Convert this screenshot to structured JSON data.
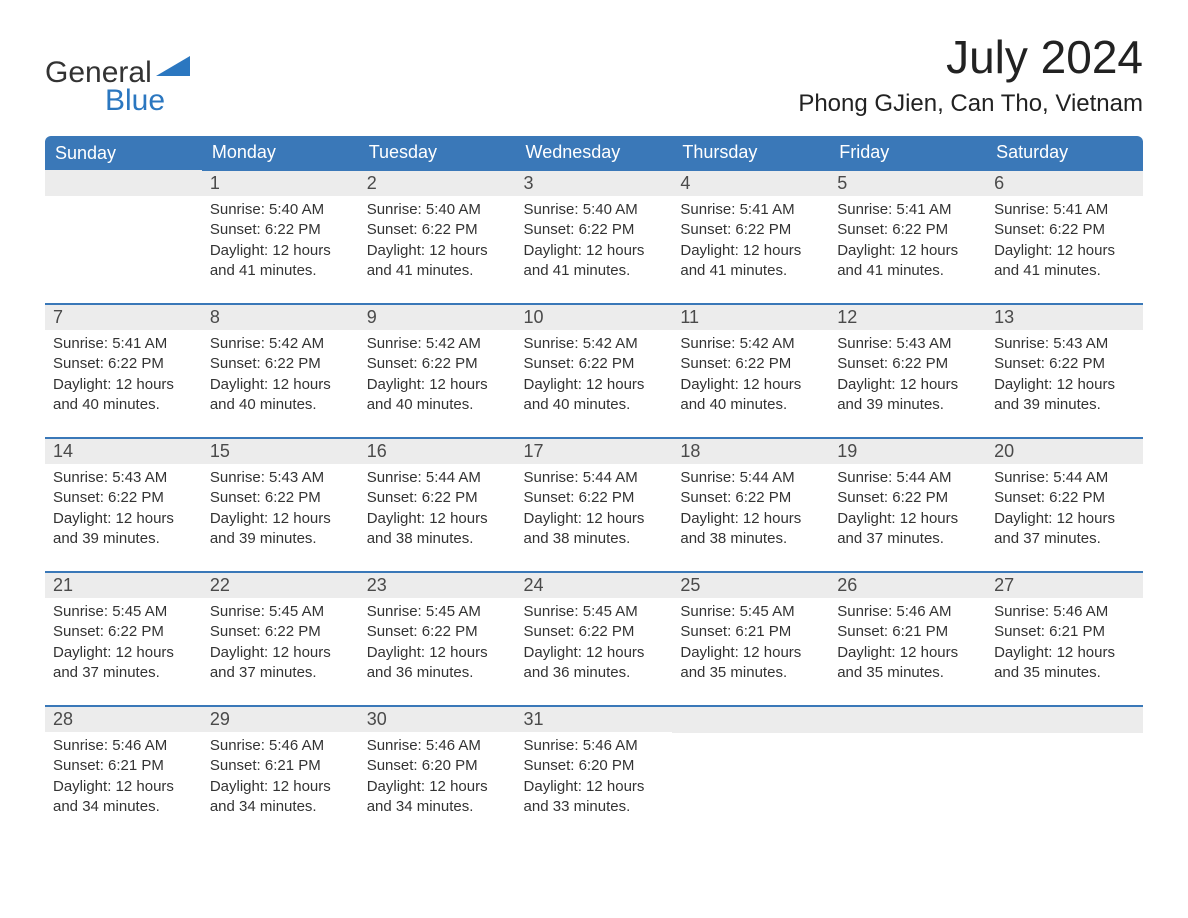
{
  "logo": {
    "text_top": "General",
    "text_bottom": "Blue",
    "tri_color": "#2b77c0"
  },
  "title": "July 2024",
  "location": "Phong GJien, Can Tho, Vietnam",
  "colors": {
    "header_bg": "#3a78b8",
    "header_text": "#ffffff",
    "daynum_bg": "#ececec",
    "row_border": "#3a78b8",
    "body_text": "#333333",
    "logo_blue": "#2b77c0"
  },
  "layout": {
    "columns": 7,
    "rows": 5,
    "start_weekday": "Sunday",
    "first_day_column_index": 1,
    "days_in_month": 31
  },
  "weekday_headers": [
    "Sunday",
    "Monday",
    "Tuesday",
    "Wednesday",
    "Thursday",
    "Friday",
    "Saturday"
  ],
  "labels": {
    "sunrise": "Sunrise: ",
    "sunset": "Sunset: ",
    "daylight": "Daylight: "
  },
  "days": [
    {
      "n": 1,
      "sunrise": "5:40 AM",
      "sunset": "6:22 PM",
      "daylight": "12 hours and 41 minutes."
    },
    {
      "n": 2,
      "sunrise": "5:40 AM",
      "sunset": "6:22 PM",
      "daylight": "12 hours and 41 minutes."
    },
    {
      "n": 3,
      "sunrise": "5:40 AM",
      "sunset": "6:22 PM",
      "daylight": "12 hours and 41 minutes."
    },
    {
      "n": 4,
      "sunrise": "5:41 AM",
      "sunset": "6:22 PM",
      "daylight": "12 hours and 41 minutes."
    },
    {
      "n": 5,
      "sunrise": "5:41 AM",
      "sunset": "6:22 PM",
      "daylight": "12 hours and 41 minutes."
    },
    {
      "n": 6,
      "sunrise": "5:41 AM",
      "sunset": "6:22 PM",
      "daylight": "12 hours and 41 minutes."
    },
    {
      "n": 7,
      "sunrise": "5:41 AM",
      "sunset": "6:22 PM",
      "daylight": "12 hours and 40 minutes."
    },
    {
      "n": 8,
      "sunrise": "5:42 AM",
      "sunset": "6:22 PM",
      "daylight": "12 hours and 40 minutes."
    },
    {
      "n": 9,
      "sunrise": "5:42 AM",
      "sunset": "6:22 PM",
      "daylight": "12 hours and 40 minutes."
    },
    {
      "n": 10,
      "sunrise": "5:42 AM",
      "sunset": "6:22 PM",
      "daylight": "12 hours and 40 minutes."
    },
    {
      "n": 11,
      "sunrise": "5:42 AM",
      "sunset": "6:22 PM",
      "daylight": "12 hours and 40 minutes."
    },
    {
      "n": 12,
      "sunrise": "5:43 AM",
      "sunset": "6:22 PM",
      "daylight": "12 hours and 39 minutes."
    },
    {
      "n": 13,
      "sunrise": "5:43 AM",
      "sunset": "6:22 PM",
      "daylight": "12 hours and 39 minutes."
    },
    {
      "n": 14,
      "sunrise": "5:43 AM",
      "sunset": "6:22 PM",
      "daylight": "12 hours and 39 minutes."
    },
    {
      "n": 15,
      "sunrise": "5:43 AM",
      "sunset": "6:22 PM",
      "daylight": "12 hours and 39 minutes."
    },
    {
      "n": 16,
      "sunrise": "5:44 AM",
      "sunset": "6:22 PM",
      "daylight": "12 hours and 38 minutes."
    },
    {
      "n": 17,
      "sunrise": "5:44 AM",
      "sunset": "6:22 PM",
      "daylight": "12 hours and 38 minutes."
    },
    {
      "n": 18,
      "sunrise": "5:44 AM",
      "sunset": "6:22 PM",
      "daylight": "12 hours and 38 minutes."
    },
    {
      "n": 19,
      "sunrise": "5:44 AM",
      "sunset": "6:22 PM",
      "daylight": "12 hours and 37 minutes."
    },
    {
      "n": 20,
      "sunrise": "5:44 AM",
      "sunset": "6:22 PM",
      "daylight": "12 hours and 37 minutes."
    },
    {
      "n": 21,
      "sunrise": "5:45 AM",
      "sunset": "6:22 PM",
      "daylight": "12 hours and 37 minutes."
    },
    {
      "n": 22,
      "sunrise": "5:45 AM",
      "sunset": "6:22 PM",
      "daylight": "12 hours and 37 minutes."
    },
    {
      "n": 23,
      "sunrise": "5:45 AM",
      "sunset": "6:22 PM",
      "daylight": "12 hours and 36 minutes."
    },
    {
      "n": 24,
      "sunrise": "5:45 AM",
      "sunset": "6:22 PM",
      "daylight": "12 hours and 36 minutes."
    },
    {
      "n": 25,
      "sunrise": "5:45 AM",
      "sunset": "6:21 PM",
      "daylight": "12 hours and 35 minutes."
    },
    {
      "n": 26,
      "sunrise": "5:46 AM",
      "sunset": "6:21 PM",
      "daylight": "12 hours and 35 minutes."
    },
    {
      "n": 27,
      "sunrise": "5:46 AM",
      "sunset": "6:21 PM",
      "daylight": "12 hours and 35 minutes."
    },
    {
      "n": 28,
      "sunrise": "5:46 AM",
      "sunset": "6:21 PM",
      "daylight": "12 hours and 34 minutes."
    },
    {
      "n": 29,
      "sunrise": "5:46 AM",
      "sunset": "6:21 PM",
      "daylight": "12 hours and 34 minutes."
    },
    {
      "n": 30,
      "sunrise": "5:46 AM",
      "sunset": "6:20 PM",
      "daylight": "12 hours and 34 minutes."
    },
    {
      "n": 31,
      "sunrise": "5:46 AM",
      "sunset": "6:20 PM",
      "daylight": "12 hours and 33 minutes."
    }
  ]
}
